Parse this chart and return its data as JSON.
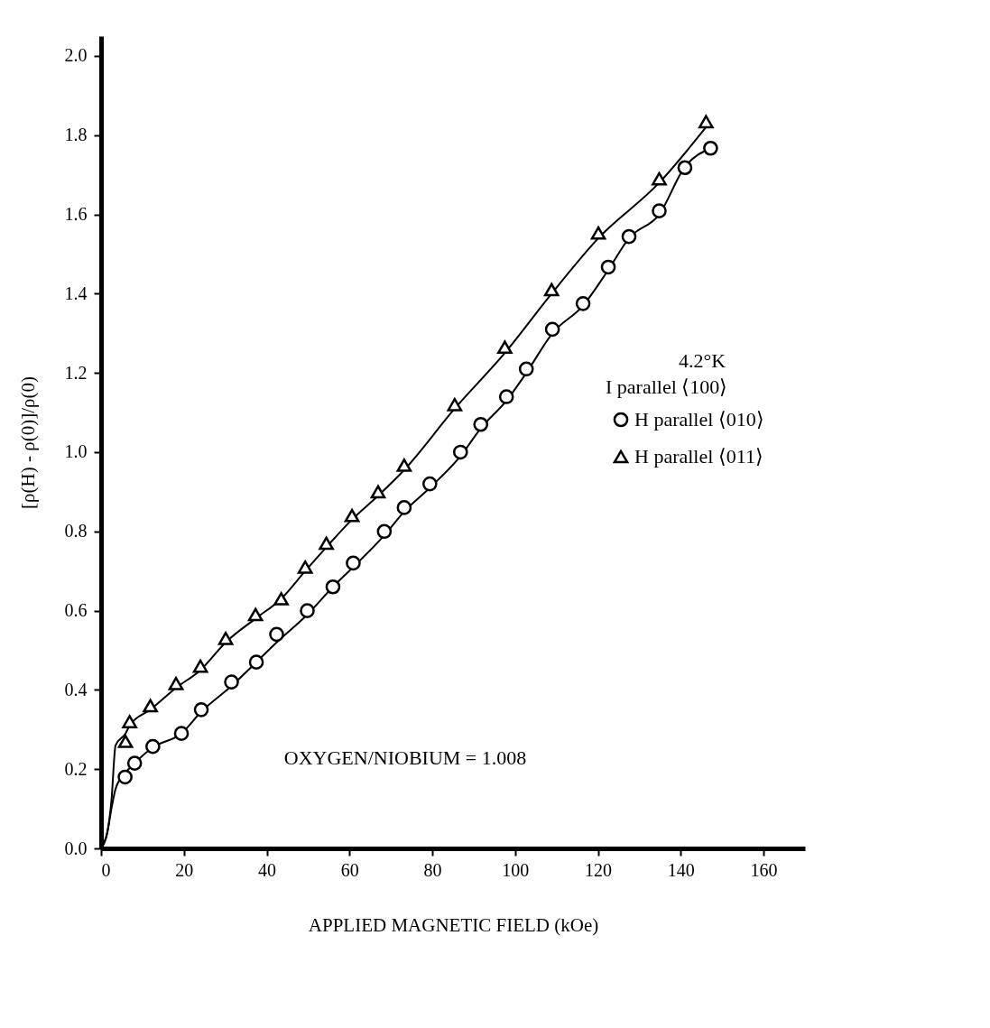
{
  "chart_data": {
    "type": "scatter",
    "xlabel": "APPLIED MAGNETIC FIELD (kOe)",
    "ylabel": "[ρ(H) - ρ(0)]/ρ(0)",
    "annotations": [
      "4.2°K",
      "I parallel ⟨100⟩",
      "OXYGEN/NIOBIUM = 1.008"
    ],
    "xlim": [
      0,
      170
    ],
    "xticks": [
      0,
      20,
      40,
      60,
      80,
      100,
      120,
      140,
      160
    ],
    "ylim": [
      0,
      2.05
    ],
    "yticks": [
      {
        "value": 0,
        "label": "0.0"
      },
      {
        "value": 0.2,
        "label": "0.2"
      },
      {
        "value": 0.4,
        "label": "0.4"
      },
      {
        "value": 0.6,
        "label": "0.6"
      },
      {
        "value": 0.8,
        "label": "0.8"
      },
      {
        "value": 1.0,
        "label": "1.0"
      },
      {
        "value": 1.2,
        "label": "1.2"
      },
      {
        "value": 1.4,
        "label": "1.4"
      },
      {
        "value": 1.6,
        "label": "1.6"
      },
      {
        "value": 1.8,
        "label": "1.8"
      },
      {
        "value": 2.0,
        "label": "2.0"
      }
    ],
    "grid": false,
    "legend": "right",
    "line_style": "solid",
    "series": [
      {
        "name": "H parallel ⟨010⟩",
        "type": "scatter",
        "marker": "circle",
        "color": "#000000",
        "x": [
          5.8,
          8.1,
          12.5,
          19.4,
          24.2,
          31.5,
          37.5,
          42.4,
          49.8,
          56.0,
          60.9,
          68.4,
          73.2,
          79.4,
          86.8,
          91.7,
          97.9,
          102.7,
          109.0,
          116.4,
          122.5,
          127.5,
          134.8,
          141.0,
          147.2
        ],
        "values": [
          0.18,
          0.215,
          0.257,
          0.29,
          0.35,
          0.42,
          0.47,
          0.54,
          0.6,
          0.66,
          0.72,
          0.8,
          0.86,
          0.92,
          1.0,
          1.07,
          1.14,
          1.21,
          1.31,
          1.375,
          1.467,
          1.544,
          1.609,
          1.718,
          1.767
        ]
      },
      {
        "name": "H parallel ⟨011⟩",
        "type": "scatter",
        "marker": "triangle",
        "color": "#000000",
        "x": [
          5.9,
          6.9,
          11.9,
          18.1,
          24.0,
          30.1,
          37.3,
          43.5,
          49.3,
          54.4,
          60.6,
          66.9,
          73.2,
          85.4,
          97.5,
          108.8,
          120.1,
          134.8,
          146.1
        ],
        "values": [
          0.27,
          0.32,
          0.36,
          0.416,
          0.46,
          0.53,
          0.59,
          0.63,
          0.71,
          0.77,
          0.84,
          0.9,
          0.967,
          1.12,
          1.265,
          1.41,
          1.553,
          1.69,
          1.834
        ]
      },
      {
        "type": "line",
        "marker": "none",
        "color": "#000000",
        "x": [
          0,
          1.5,
          2.5,
          3.5,
          5.8,
          8.1,
          12.5,
          19.4,
          24.2,
          31.5,
          37.5,
          42.4,
          49.8,
          56.0,
          60.9,
          68.4,
          73.2,
          79.4,
          86.8,
          91.7,
          97.9,
          102.7,
          109.0,
          116.4,
          122.5,
          127.5,
          134.8,
          141.0,
          147.2
        ],
        "values": [
          0,
          0.04,
          0.1,
          0.15,
          0.19,
          0.215,
          0.255,
          0.29,
          0.345,
          0.41,
          0.47,
          0.52,
          0.59,
          0.66,
          0.71,
          0.79,
          0.85,
          0.91,
          0.99,
          1.06,
          1.13,
          1.2,
          1.3,
          1.37,
          1.46,
          1.54,
          1.6,
          1.72,
          1.767
        ]
      },
      {
        "type": "line",
        "marker": "none",
        "color": "#000000",
        "x": [
          0,
          1.5,
          2.5,
          3.5,
          5.9,
          6.9,
          11.9,
          18.1,
          24.0,
          30.1,
          37.3,
          43.5,
          49.3,
          54.4,
          60.6,
          66.9,
          73.2,
          85.4,
          97.5,
          108.8,
          120.1,
          134.8,
          146.1
        ],
        "values": [
          0,
          0.04,
          0.12,
          0.26,
          0.29,
          0.31,
          0.35,
          0.405,
          0.45,
          0.52,
          0.58,
          0.63,
          0.7,
          0.76,
          0.83,
          0.89,
          0.955,
          1.11,
          1.25,
          1.4,
          1.54,
          1.68,
          1.82
        ]
      }
    ]
  }
}
